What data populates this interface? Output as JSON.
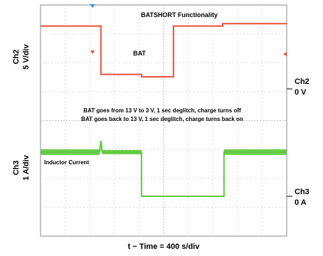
{
  "chart_data": {
    "type": "line",
    "title": "BATSHORT Functionality",
    "xlabel": "t − Time = 400   s/div",
    "time_per_div_us": 400,
    "divisions": {
      "x": 10,
      "y": 8
    },
    "grid": true,
    "channels": [
      {
        "name": "Ch2",
        "scale": "5 V/div",
        "offset_label": "0 V",
        "color": "#e8503a",
        "series_label": "BAT",
        "unit": "V",
        "x_div": [
          0,
          2.45,
          2.45,
          4.1,
          4.1,
          5.4,
          5.4,
          7.4,
          7.4,
          10
        ],
        "y_volts": [
          13,
          13,
          3,
          3,
          2.5,
          2.5,
          13,
          13,
          13.5,
          13.5
        ]
      },
      {
        "name": "Ch3",
        "scale": "1 A/div",
        "offset_label": "0 A",
        "color": "#5cc93a",
        "series_label": "Inductor Current",
        "unit": "A",
        "x_div": [
          0,
          2.4,
          2.45,
          2.5,
          4.1,
          4.1,
          7.45,
          7.45,
          10
        ],
        "y_amps": [
          1.35,
          1.35,
          1.7,
          1.35,
          1.35,
          0,
          0,
          1.35,
          1.35
        ]
      }
    ],
    "annotations": [
      "BAT goes from 13 V to 3 V, 1 sec deglitch, charge turns off",
      "BAT goes back to 13 V, 1 sec deglitch, charge turns back on"
    ]
  },
  "colors": {
    "grid": "#b9b9b9",
    "trigger_marker": "#3f8fd6"
  }
}
